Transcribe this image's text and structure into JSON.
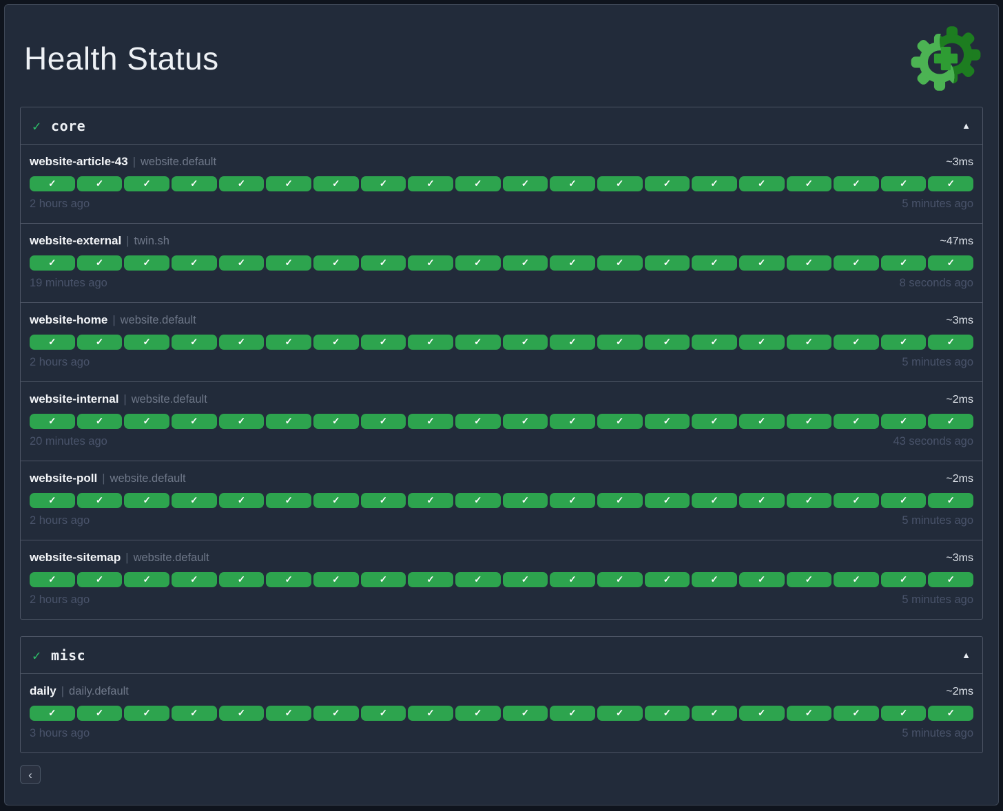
{
  "header": {
    "title": "Health Status"
  },
  "colors": {
    "background": "#222b3a",
    "badge_success": "#2da44e",
    "status_check_green": "#2dbd68",
    "logo_green_light": "#4cb353",
    "logo_green_dark": "#1d7d20",
    "logo_plus_green": "#2e9c33"
  },
  "groups": [
    {
      "status_icon": "✓",
      "name": "core",
      "collapse_icon": "▲",
      "endpoints": [
        {
          "name": "website-article-43",
          "separator": "|",
          "host": "website.default",
          "response_time": "~3ms",
          "history": {
            "count": 20,
            "status": "success",
            "icon": "✓"
          },
          "oldest": "2 hours ago",
          "newest": "5 minutes ago"
        },
        {
          "name": "website-external",
          "separator": "|",
          "host": "twin.sh",
          "response_time": "~47ms",
          "history": {
            "count": 20,
            "status": "success",
            "icon": "✓"
          },
          "oldest": "19 minutes ago",
          "newest": "8 seconds ago"
        },
        {
          "name": "website-home",
          "separator": "|",
          "host": "website.default",
          "response_time": "~3ms",
          "history": {
            "count": 20,
            "status": "success",
            "icon": "✓"
          },
          "oldest": "2 hours ago",
          "newest": "5 minutes ago"
        },
        {
          "name": "website-internal",
          "separator": "|",
          "host": "website.default",
          "response_time": "~2ms",
          "history": {
            "count": 20,
            "status": "success",
            "icon": "✓"
          },
          "oldest": "20 minutes ago",
          "newest": "43 seconds ago"
        },
        {
          "name": "website-poll",
          "separator": "|",
          "host": "website.default",
          "response_time": "~2ms",
          "history": {
            "count": 20,
            "status": "success",
            "icon": "✓"
          },
          "oldest": "2 hours ago",
          "newest": "5 minutes ago"
        },
        {
          "name": "website-sitemap",
          "separator": "|",
          "host": "website.default",
          "response_time": "~3ms",
          "history": {
            "count": 20,
            "status": "success",
            "icon": "✓"
          },
          "oldest": "2 hours ago",
          "newest": "5 minutes ago"
        }
      ]
    },
    {
      "status_icon": "✓",
      "name": "misc",
      "collapse_icon": "▲",
      "endpoints": [
        {
          "name": "daily",
          "separator": "|",
          "host": "daily.default",
          "response_time": "~2ms",
          "history": {
            "count": 20,
            "status": "success",
            "icon": "✓"
          },
          "oldest": "3 hours ago",
          "newest": "5 minutes ago"
        }
      ]
    }
  ],
  "pagination": {
    "previous_icon": "‹"
  }
}
